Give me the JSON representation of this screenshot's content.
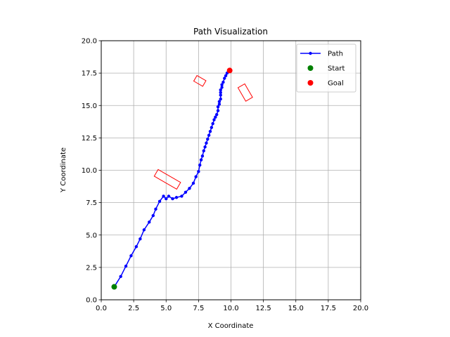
{
  "chart_data": {
    "type": "line",
    "title": "Path Visualization",
    "xlabel": "X Coordinate",
    "ylabel": "Y Coordinate",
    "xlim": [
      0,
      20
    ],
    "ylim": [
      0,
      20
    ],
    "xticks": [
      0.0,
      2.5,
      5.0,
      7.5,
      10.0,
      12.5,
      15.0,
      17.5,
      20.0
    ],
    "yticks": [
      0.0,
      2.5,
      5.0,
      7.5,
      10.0,
      12.5,
      15.0,
      17.5,
      20.0
    ],
    "xtick_labels": [
      "0.0",
      "2.5",
      "5.0",
      "7.5",
      "10.0",
      "12.5",
      "15.0",
      "17.5",
      "20.0"
    ],
    "ytick_labels": [
      "0.0",
      "2.5",
      "5.0",
      "7.5",
      "10.0",
      "12.5",
      "15.0",
      "17.5",
      "20.0"
    ],
    "grid": true,
    "legend_position": "top-right",
    "legend": [
      {
        "label": "Path",
        "marker": "line-dot",
        "color": "#0000ff"
      },
      {
        "label": "Start",
        "marker": "dot",
        "color": "#008000"
      },
      {
        "label": "Goal",
        "marker": "dot",
        "color": "#ff0000"
      }
    ],
    "series": [
      {
        "name": "Path",
        "color": "#0000ff",
        "points": [
          [
            1.0,
            1.0
          ],
          [
            1.5,
            1.8
          ],
          [
            1.9,
            2.6
          ],
          [
            2.3,
            3.4
          ],
          [
            2.7,
            4.1
          ],
          [
            3.0,
            4.7
          ],
          [
            3.3,
            5.4
          ],
          [
            3.7,
            6.0
          ],
          [
            4.0,
            6.5
          ],
          [
            4.2,
            7.0
          ],
          [
            4.5,
            7.6
          ],
          [
            4.8,
            8.0
          ],
          [
            5.0,
            7.8
          ],
          [
            5.2,
            8.0
          ],
          [
            5.5,
            7.8
          ],
          [
            5.8,
            7.9
          ],
          [
            6.2,
            8.0
          ],
          [
            6.5,
            8.3
          ],
          [
            6.8,
            8.6
          ],
          [
            7.1,
            9.0
          ],
          [
            7.3,
            9.5
          ],
          [
            7.5,
            9.9
          ],
          [
            7.6,
            10.4
          ],
          [
            7.7,
            10.8
          ],
          [
            7.8,
            11.1
          ],
          [
            7.9,
            11.5
          ],
          [
            8.0,
            11.8
          ],
          [
            8.1,
            12.1
          ],
          [
            8.2,
            12.4
          ],
          [
            8.3,
            12.7
          ],
          [
            8.4,
            13.0
          ],
          [
            8.5,
            13.3
          ],
          [
            8.6,
            13.6
          ],
          [
            8.7,
            13.9
          ],
          [
            8.8,
            14.1
          ],
          [
            8.9,
            14.3
          ],
          [
            9.0,
            14.6
          ],
          [
            9.0,
            14.9
          ],
          [
            9.1,
            15.1
          ],
          [
            9.1,
            15.3
          ],
          [
            9.2,
            15.5
          ],
          [
            9.2,
            15.8
          ],
          [
            9.2,
            16.0
          ],
          [
            9.2,
            16.2
          ],
          [
            9.3,
            16.4
          ],
          [
            9.3,
            16.6
          ],
          [
            9.4,
            16.8
          ],
          [
            9.5,
            17.1
          ],
          [
            9.6,
            17.3
          ],
          [
            9.7,
            17.5
          ],
          [
            9.8,
            17.6
          ],
          [
            9.9,
            17.7
          ]
        ]
      }
    ],
    "start": {
      "label": "Start",
      "x": 1.0,
      "y": 1.0,
      "color": "#008000"
    },
    "goal": {
      "label": "Goal",
      "x": 9.9,
      "y": 17.7,
      "color": "#ff0000"
    },
    "obstacles": [
      {
        "cx": 5.1,
        "cy": 9.3,
        "width": 2.0,
        "height": 0.6,
        "angle": 30,
        "color": "#ff0000"
      },
      {
        "cx": 7.6,
        "cy": 16.9,
        "width": 0.8,
        "height": 0.5,
        "angle": 30,
        "color": "#ff0000"
      },
      {
        "cx": 11.1,
        "cy": 16.0,
        "width": 1.2,
        "height": 0.6,
        "angle": 60,
        "color": "#ff0000"
      }
    ]
  }
}
